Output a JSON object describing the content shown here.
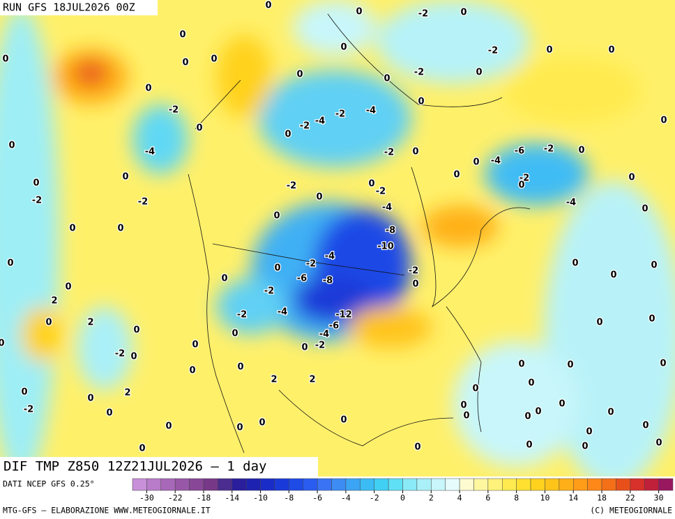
{
  "header": {
    "run": "RUN GFS 18JUL2026 00Z"
  },
  "title": "DIF TMP Z850 12Z21JUL2026 – 1 day",
  "colorbar": {
    "source": "DATI NCEP GFS 0.25°",
    "ticks": [
      -30,
      -22,
      -18,
      -14,
      -10,
      -8,
      -6,
      -4,
      -2,
      0,
      2,
      4,
      6,
      8,
      10,
      14,
      18,
      22,
      30
    ],
    "colors": [
      "#c890d8",
      "#b87cc8",
      "#a868b8",
      "#9858a8",
      "#884898",
      "#783888",
      "#4b2d8f",
      "#2a1e9c",
      "#1e22b0",
      "#1a2cc8",
      "#1a3ad8",
      "#1e4ae6",
      "#2a5cf0",
      "#3a74f4",
      "#3c8cf4",
      "#3ca4f4",
      "#3cbcf4",
      "#40d0f4",
      "#60e0f4",
      "#8aeaf6",
      "#aaf0f8",
      "#c8f6fa",
      "#e6fcfc",
      "#fffbd0",
      "#fff7a0",
      "#fff27a",
      "#ffeb50",
      "#ffe030",
      "#ffd21e",
      "#ffc41a",
      "#ffb018",
      "#ff9c18",
      "#ff8818",
      "#f47018",
      "#e8501a",
      "#d8302a",
      "#c0203a",
      "#981860"
    ]
  },
  "footer": {
    "left": "MTG-GFS – ELABORAZIONE WWW.METEOGIORNALE.IT",
    "right": "(C) METEOGIORNALE"
  },
  "map": {
    "labels": [
      0,
      0,
      -2,
      0,
      0,
      0,
      0,
      0,
      0,
      0,
      0,
      0,
      -2,
      0,
      0,
      -2,
      0,
      -2,
      0,
      0,
      -4,
      -2,
      -4,
      -2,
      -4,
      0,
      0,
      -2,
      0,
      -6,
      -2,
      0,
      -4,
      0,
      0,
      0,
      0,
      -2,
      -2,
      -2,
      0,
      0,
      -2,
      -4,
      -2,
      0,
      0,
      -4,
      0,
      0,
      0,
      0,
      -8,
      -10,
      0,
      0,
      0,
      -4,
      -2,
      0,
      -2,
      0,
      0,
      0,
      0,
      0,
      -6,
      -8,
      -2,
      2,
      0,
      2,
      -2,
      -4,
      -12,
      -6,
      -4,
      0,
      0,
      0,
      0,
      0,
      0,
      0,
      -2,
      -2,
      0,
      0,
      0,
      0,
      0,
      0,
      2,
      2,
      0,
      2,
      0,
      0,
      0,
      -2,
      0,
      0,
      0,
      0,
      0,
      0,
      0,
      0,
      0,
      0,
      0,
      0,
      0,
      0,
      0,
      0,
      0,
      0
    ]
  }
}
